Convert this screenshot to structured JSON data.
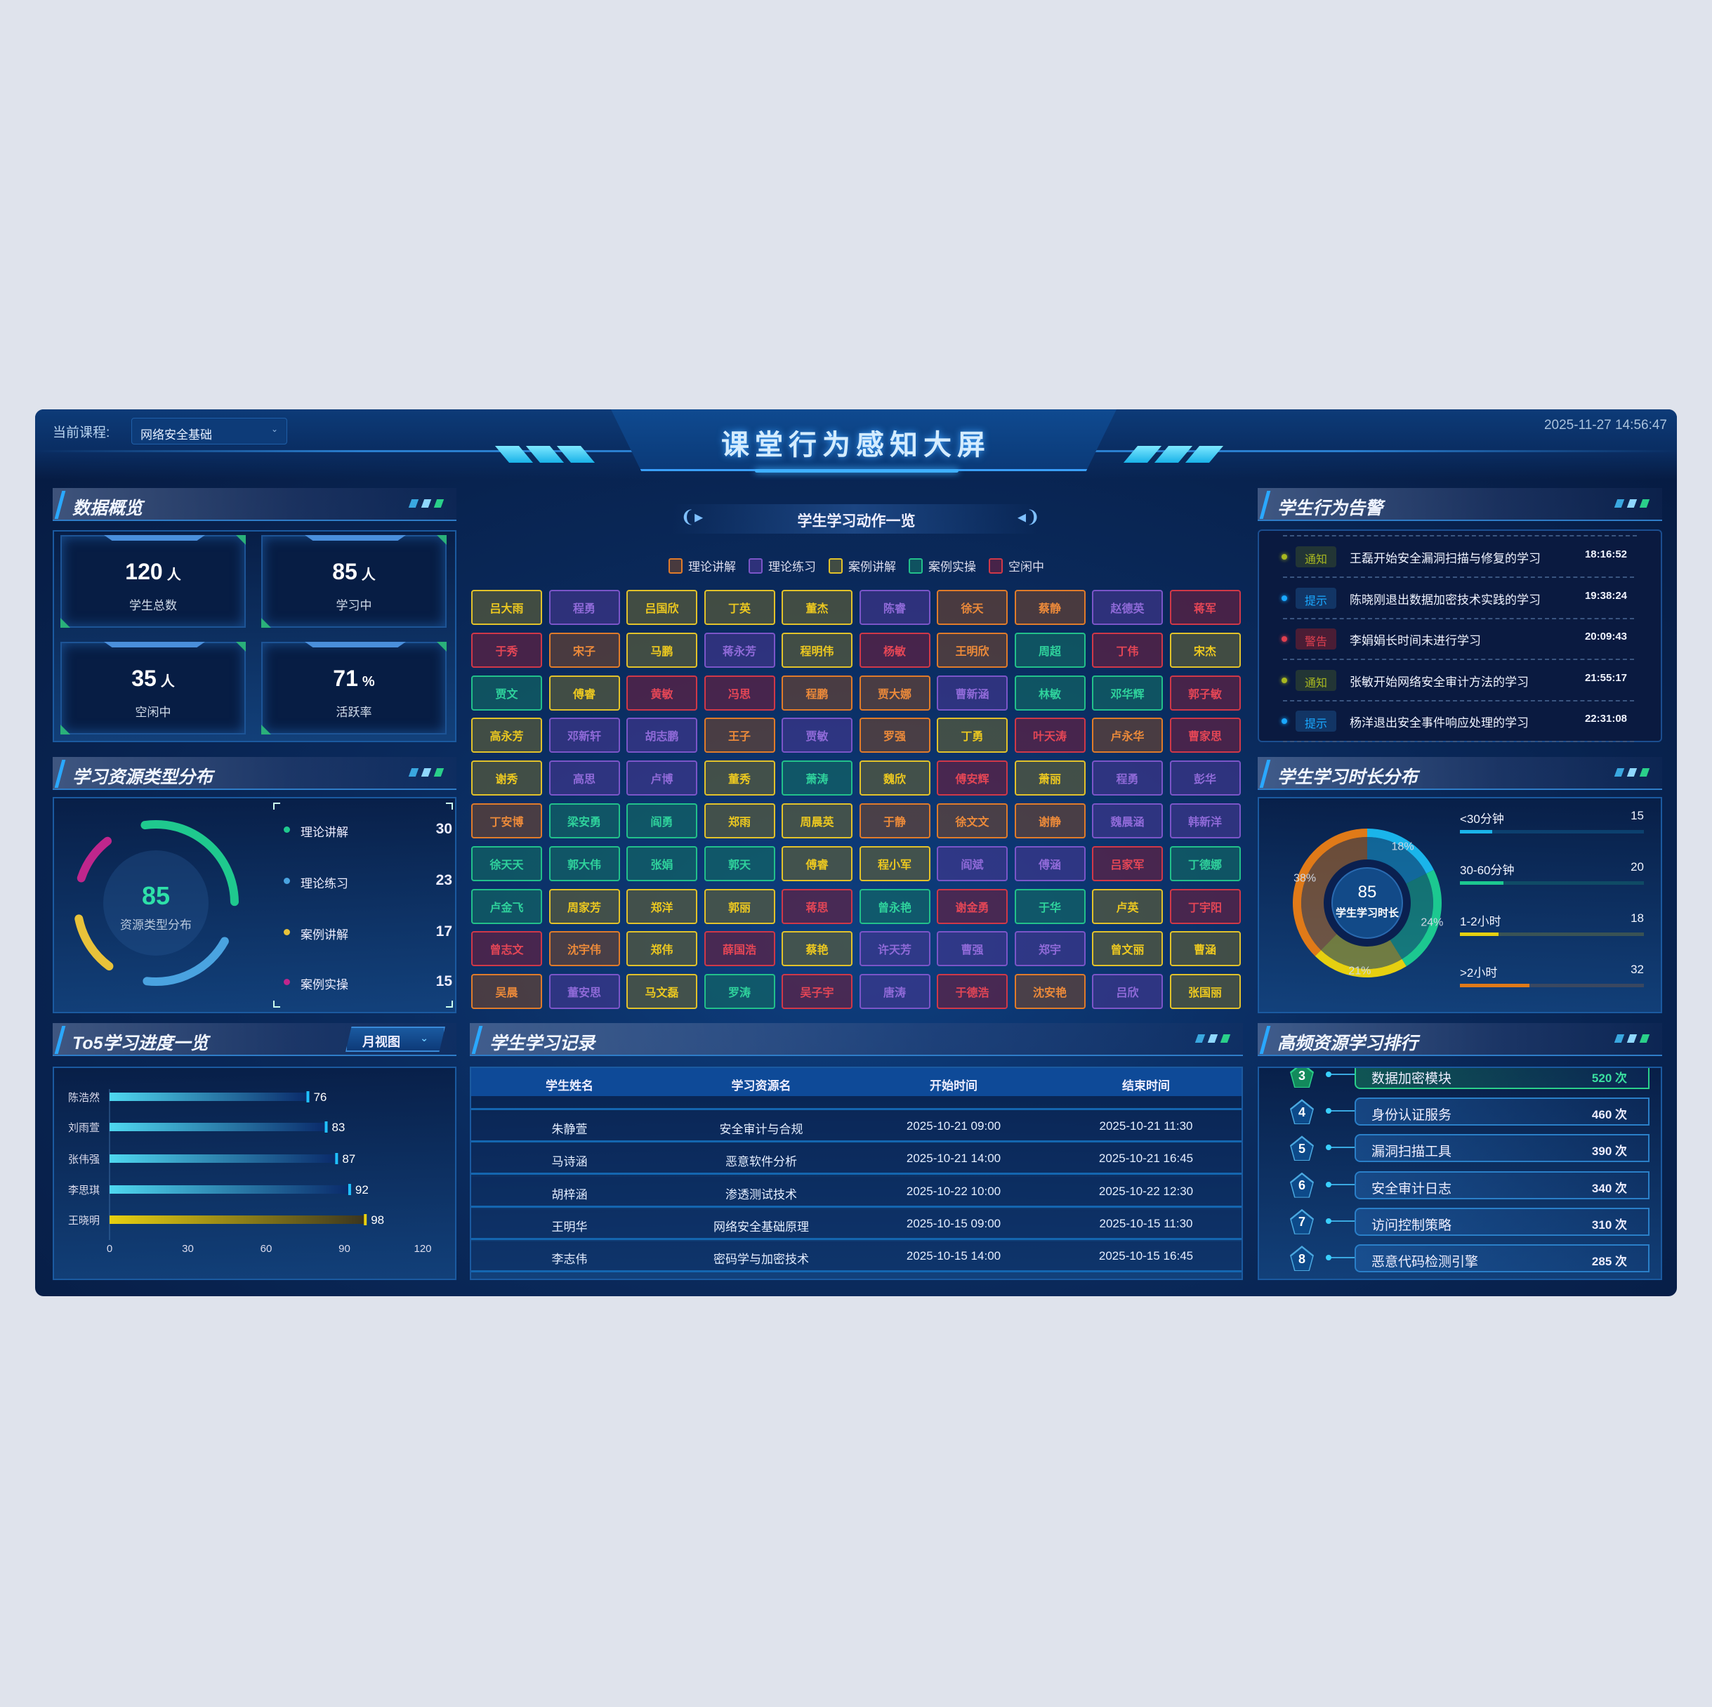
{
  "header": {
    "course_label": "当前课程:",
    "course_value": "网络安全基础",
    "title": "课堂行为感知大屏",
    "datetime": "2025-11-27 14:56:47"
  },
  "overview": {
    "title": "数据概览",
    "cards": [
      {
        "value": "120",
        "unit": "人",
        "label": "学生总数"
      },
      {
        "value": "85",
        "unit": "人",
        "label": "学习中"
      },
      {
        "value": "35",
        "unit": "人",
        "label": "空闲中"
      },
      {
        "value": "71",
        "unit": "%",
        "label": "活跃率"
      }
    ]
  },
  "resource_types": {
    "title": "学习资源类型分布",
    "center_value": "85",
    "center_label": "资源类型分布",
    "items": [
      {
        "label": "理论讲解",
        "value": 30,
        "color": "#1fc98e"
      },
      {
        "label": "理论练习",
        "value": 23,
        "color": "#4aa3e0"
      },
      {
        "label": "案例讲解",
        "value": 17,
        "color": "#e8c23a"
      },
      {
        "label": "案例实操",
        "value": 15,
        "color": "#c0268c"
      }
    ]
  },
  "top5": {
    "title": "To5学习进度一览",
    "view_select": "月视图",
    "chart_data": {
      "type": "bar",
      "orientation": "horizontal",
      "categories": [
        "陈浩然",
        "刘雨萱",
        "张伟强",
        "李思琪",
        "王晓明"
      ],
      "values": [
        76,
        83,
        87,
        92,
        98
      ],
      "xlim": [
        0,
        120
      ],
      "xticks": [
        "0",
        "30",
        "60",
        "90",
        "120"
      ],
      "highlight_color": "#e8d010",
      "bar_color": "#4fd8f0"
    }
  },
  "actions": {
    "title": "学生学习动作一览",
    "legend": [
      {
        "key": "lecture",
        "label": "理论讲解",
        "color": "#e07b2a",
        "text": "#ec8a3a",
        "bg": "rgba(115,70,45,0.6)"
      },
      {
        "key": "practice",
        "label": "理论练习",
        "color": "#7b55c8",
        "text": "#8f6ad8",
        "bg": "rgba(70,55,145,0.6)"
      },
      {
        "key": "case",
        "label": "案例讲解",
        "color": "#e2c22a",
        "text": "#ecc820",
        "bg": "rgba(95,95,55,0.65)"
      },
      {
        "key": "lab",
        "label": "案例实操",
        "color": "#22c08a",
        "text": "#2fd29c",
        "bg": "rgba(18,105,100,0.65)"
      },
      {
        "key": "idle",
        "label": "空闲中",
        "color": "#d03848",
        "text": "#e44656",
        "bg": "rgba(105,32,65,0.65)"
      }
    ],
    "students": [
      [
        [
          "吕大雨",
          "case"
        ],
        [
          "程勇",
          "practice"
        ],
        [
          "吕国欣",
          "case"
        ],
        [
          "丁英",
          "case"
        ],
        [
          "董杰",
          "case"
        ],
        [
          "陈睿",
          "practice"
        ],
        [
          "徐天",
          "lecture"
        ],
        [
          "蔡静",
          "lecture"
        ],
        [
          "赵德英",
          "practice"
        ],
        [
          "蒋军",
          "idle"
        ]
      ],
      [
        [
          "于秀",
          "idle"
        ],
        [
          "宋子",
          "lecture"
        ],
        [
          "马鹏",
          "case"
        ],
        [
          "蒋永芳",
          "practice"
        ],
        [
          "程明伟",
          "case"
        ],
        [
          "杨敏",
          "idle"
        ],
        [
          "王明欣",
          "lecture"
        ],
        [
          "周超",
          "lab"
        ],
        [
          "丁伟",
          "idle"
        ],
        [
          "宋杰",
          "case"
        ]
      ],
      [
        [
          "贾文",
          "lab"
        ],
        [
          "傅睿",
          "case"
        ],
        [
          "黄敏",
          "idle"
        ],
        [
          "冯思",
          "idle"
        ],
        [
          "程鹏",
          "lecture"
        ],
        [
          "贾大娜",
          "lecture"
        ],
        [
          "曹新涵",
          "practice"
        ],
        [
          "林敏",
          "lab"
        ],
        [
          "邓华辉",
          "lab"
        ],
        [
          "郭子敏",
          "idle"
        ]
      ],
      [
        [
          "高永芳",
          "case"
        ],
        [
          "邓新轩",
          "practice"
        ],
        [
          "胡志鹏",
          "practice"
        ],
        [
          "王子",
          "lecture"
        ],
        [
          "贾敏",
          "practice"
        ],
        [
          "罗强",
          "lecture"
        ],
        [
          "丁勇",
          "case"
        ],
        [
          "叶天涛",
          "idle"
        ],
        [
          "卢永华",
          "lecture"
        ],
        [
          "曹家思",
          "idle"
        ]
      ],
      [
        [
          "谢秀",
          "case"
        ],
        [
          "高思",
          "practice"
        ],
        [
          "卢博",
          "practice"
        ],
        [
          "董秀",
          "case"
        ],
        [
          "萧涛",
          "lab"
        ],
        [
          "魏欣",
          "case"
        ],
        [
          "傅安辉",
          "idle"
        ],
        [
          "萧丽",
          "case"
        ],
        [
          "程勇",
          "practice"
        ],
        [
          "彭华",
          "practice"
        ]
      ],
      [
        [
          "丁安博",
          "lecture"
        ],
        [
          "梁安勇",
          "lab"
        ],
        [
          "阎勇",
          "lab"
        ],
        [
          "郑雨",
          "case"
        ],
        [
          "周晨英",
          "case"
        ],
        [
          "于静",
          "lecture"
        ],
        [
          "徐文文",
          "lecture"
        ],
        [
          "谢静",
          "lecture"
        ],
        [
          "魏晨涵",
          "practice"
        ],
        [
          "韩新洋",
          "practice"
        ]
      ],
      [
        [
          "徐天天",
          "lab"
        ],
        [
          "郭大伟",
          "lab"
        ],
        [
          "张娟",
          "lab"
        ],
        [
          "郭天",
          "lab"
        ],
        [
          "傅睿",
          "case"
        ],
        [
          "程小军",
          "case"
        ],
        [
          "阎斌",
          "practice"
        ],
        [
          "傅涵",
          "practice"
        ],
        [
          "吕家军",
          "idle"
        ],
        [
          "丁德娜",
          "lab"
        ]
      ],
      [
        [
          "卢金飞",
          "lab"
        ],
        [
          "周家芳",
          "case"
        ],
        [
          "郑洋",
          "case"
        ],
        [
          "郭丽",
          "case"
        ],
        [
          "蒋思",
          "idle"
        ],
        [
          "曾永艳",
          "lab"
        ],
        [
          "谢金勇",
          "idle"
        ],
        [
          "于华",
          "lab"
        ],
        [
          "卢英",
          "case"
        ],
        [
          "丁宇阳",
          "idle"
        ]
      ],
      [
        [
          "曾志文",
          "idle"
        ],
        [
          "沈宇伟",
          "lecture"
        ],
        [
          "郑伟",
          "case"
        ],
        [
          "薛国浩",
          "idle"
        ],
        [
          "蔡艳",
          "case"
        ],
        [
          "许天芳",
          "practice"
        ],
        [
          "曹强",
          "practice"
        ],
        [
          "郑宇",
          "practice"
        ],
        [
          "曾文丽",
          "case"
        ],
        [
          "曹涵",
          "case"
        ]
      ],
      [
        [
          "吴晨",
          "lecture"
        ],
        [
          "董安思",
          "practice"
        ],
        [
          "马文磊",
          "case"
        ],
        [
          "罗涛",
          "lab"
        ],
        [
          "吴子宇",
          "idle"
        ],
        [
          "唐涛",
          "practice"
        ],
        [
          "于德浩",
          "idle"
        ],
        [
          "沈安艳",
          "lecture"
        ],
        [
          "吕欣",
          "practice"
        ],
        [
          "张国丽",
          "case"
        ]
      ]
    ]
  },
  "records": {
    "title": "学生学习记录",
    "columns": [
      "学生姓名",
      "学习资源名",
      "开始时间",
      "结束时间"
    ],
    "rows": [
      [
        "朱静萱",
        "安全审计与合规",
        "2025-10-21 09:00",
        "2025-10-21 11:30"
      ],
      [
        "马诗涵",
        "恶意软件分析",
        "2025-10-21 14:00",
        "2025-10-21 16:45"
      ],
      [
        "胡梓涵",
        "渗透测试技术",
        "2025-10-22 10:00",
        "2025-10-22 12:30"
      ],
      [
        "王明华",
        "网络安全基础原理",
        "2025-10-15 09:00",
        "2025-10-15 11:30"
      ],
      [
        "李志伟",
        "密码学与加密技术",
        "2025-10-15 14:00",
        "2025-10-15 16:45"
      ]
    ]
  },
  "alerts": {
    "title": "学生行为告警",
    "items": [
      {
        "type": "通知",
        "level": "notice",
        "text": "王磊开始安全漏洞扫描与修复的学习",
        "time": "18:16:52"
      },
      {
        "type": "提示",
        "level": "tip",
        "text": "陈晓刚退出数据加密技术实践的学习",
        "time": "19:38:24"
      },
      {
        "type": "警告",
        "level": "warn",
        "text": "李娟娟长时间未进行学习",
        "time": "20:09:43"
      },
      {
        "type": "通知",
        "level": "notice",
        "text": "张敏开始网络安全审计方法的学习",
        "time": "21:55:17"
      },
      {
        "type": "提示",
        "level": "tip",
        "text": "杨洋退出安全事件响应处理的学习",
        "time": "22:31:08"
      }
    ],
    "level_colors": {
      "notice": "#a8b820",
      "tip": "#1aa8ff",
      "warn": "#e04050"
    }
  },
  "duration": {
    "title": "学生学习时长分布",
    "center_value": "85",
    "center_label": "学生学习时长",
    "items": [
      {
        "label": "<30分钟",
        "value": 15,
        "percent": "18%",
        "color": "#1ab4ea"
      },
      {
        "label": "30-60分钟",
        "value": 20,
        "percent": "24%",
        "color": "#1cc890"
      },
      {
        "label": "1-2小时",
        "value": 18,
        "percent": "21%",
        "color": "#e6d010"
      },
      {
        "label": ">2小时",
        "value": 32,
        "percent": "38%",
        "color": "#e07a18"
      }
    ]
  },
  "ranking": {
    "title": "高频资源学习排行",
    "items": [
      {
        "rank": "3",
        "name": "数据加密模块",
        "count": "520 次"
      },
      {
        "rank": "4",
        "name": "身份认证服务",
        "count": "460 次"
      },
      {
        "rank": "5",
        "name": "漏洞扫描工具",
        "count": "390 次"
      },
      {
        "rank": "6",
        "name": "安全审计日志",
        "count": "340 次"
      },
      {
        "rank": "7",
        "name": "访问控制策略",
        "count": "310 次"
      },
      {
        "rank": "8",
        "name": "恶意代码检测引擎",
        "count": "285 次"
      }
    ]
  }
}
